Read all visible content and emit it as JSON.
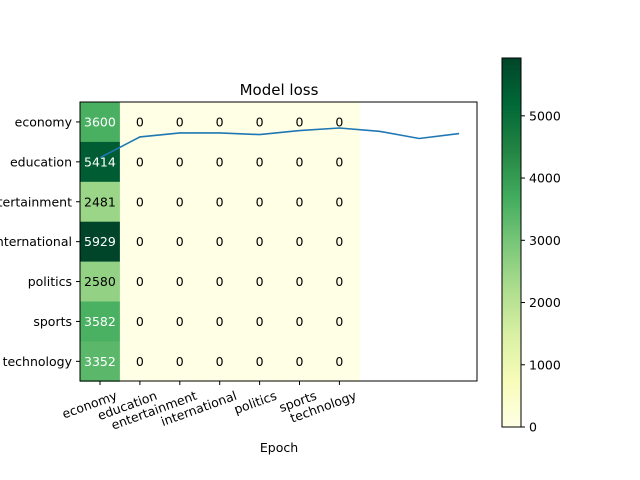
{
  "chart_data": {
    "type": "heatmap",
    "title": "Model loss",
    "xlabel": "Epoch",
    "ylabel": "",
    "row_labels": [
      "economy",
      "education",
      "entertainment",
      "international",
      "politics",
      "sports",
      "technology"
    ],
    "col_labels": [
      "economy",
      "education",
      "entertainment",
      "international",
      "politics",
      "sports",
      "technology"
    ],
    "matrix": [
      [
        3600,
        0,
        0,
        0,
        0,
        0,
        0
      ],
      [
        5414,
        0,
        0,
        0,
        0,
        0,
        0
      ],
      [
        2481,
        0,
        0,
        0,
        0,
        0,
        0
      ],
      [
        5929,
        0,
        0,
        0,
        0,
        0,
        0
      ],
      [
        2580,
        0,
        0,
        0,
        0,
        0,
        0
      ],
      [
        3582,
        0,
        0,
        0,
        0,
        0,
        0
      ],
      [
        3352,
        0,
        0,
        0,
        0,
        0,
        0
      ]
    ],
    "colormap": "YlGn",
    "colorbar": {
      "min": 0,
      "max": 5929,
      "ticks": [
        0,
        1000,
        2000,
        3000,
        4000,
        5000
      ]
    },
    "line_series": {
      "color": "#1f77b4",
      "x": [
        0,
        1,
        2,
        3,
        4,
        5,
        6,
        7,
        8,
        9
      ],
      "y": [
        1.35,
        0.72,
        0.6,
        0.6,
        0.65,
        0.53,
        0.45,
        0.55,
        0.77,
        0.62
      ]
    },
    "grid": false
  }
}
